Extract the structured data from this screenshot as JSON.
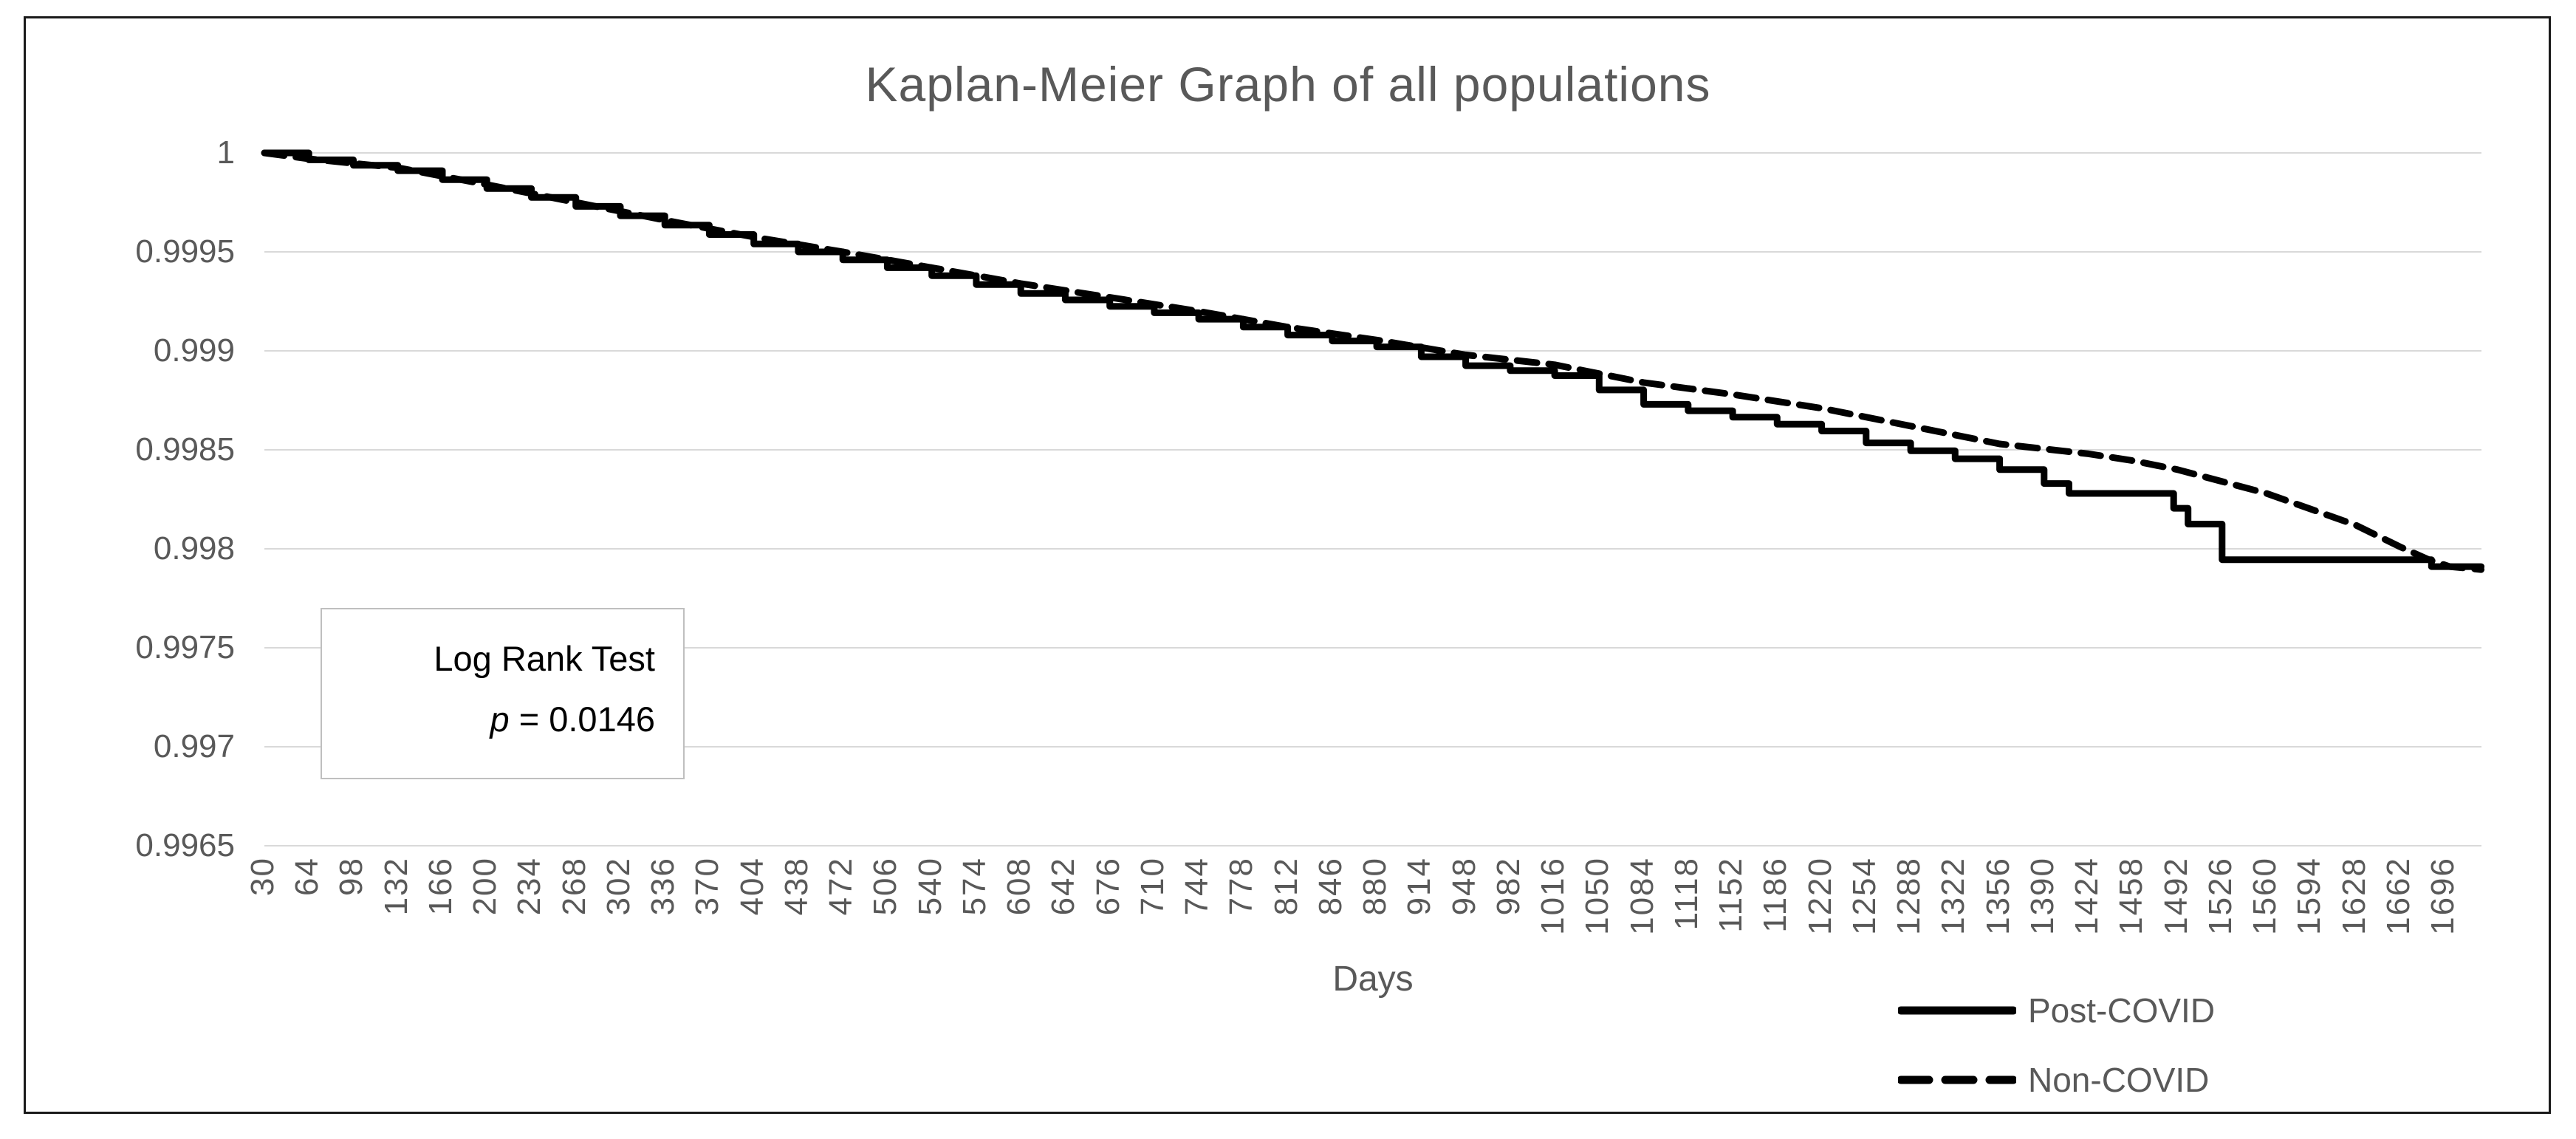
{
  "title": "Kaplan-Meier Graph of all populations",
  "x_axis": {
    "label": "Days",
    "ticks": [
      "30",
      "64",
      "98",
      "132",
      "166",
      "200",
      "234",
      "268",
      "302",
      "336",
      "370",
      "404",
      "438",
      "472",
      "506",
      "540",
      "574",
      "608",
      "642",
      "676",
      "710",
      "744",
      "778",
      "812",
      "846",
      "880",
      "914",
      "948",
      "982",
      "1016",
      "1050",
      "1084",
      "1118",
      "1152",
      "1186",
      "1220",
      "1254",
      "1288",
      "1322",
      "1356",
      "1390",
      "1424",
      "1458",
      "1492",
      "1526",
      "1560",
      "1594",
      "1628",
      "1662",
      "1696"
    ]
  },
  "y_axis": {
    "ticks": [
      "1",
      "0.9995",
      "0.999",
      "0.9985",
      "0.998",
      "0.9975",
      "0.997",
      "0.9965"
    ]
  },
  "annotation": {
    "line1": "Log Rank Test",
    "p_symbol": "p",
    "p_rest": " = 0.0146"
  },
  "legend": [
    {
      "label": "Post-COVID",
      "style": "solid"
    },
    {
      "label": "Non-COVID",
      "style": "dashed"
    }
  ],
  "colors": {
    "curve": "#000000",
    "grid": "#d9d9d9",
    "text": "#595959",
    "frame_border": "#1a1a1a",
    "annotation_border": "#bfbfbf",
    "background": "#ffffff"
  },
  "chart_data": {
    "type": "line",
    "title": "Kaplan-Meier Graph of all populations",
    "xlabel": "Days",
    "ylabel": "",
    "ylim": [
      0.9965,
      1.0
    ],
    "y_ticks": [
      1,
      0.9995,
      0.999,
      0.9985,
      0.998,
      0.9975,
      0.997,
      0.9965
    ],
    "x_ticks": [
      30,
      64,
      98,
      132,
      166,
      200,
      234,
      268,
      302,
      336,
      370,
      404,
      438,
      472,
      506,
      540,
      574,
      608,
      642,
      676,
      710,
      744,
      778,
      812,
      846,
      880,
      914,
      948,
      982,
      1016,
      1050,
      1084,
      1118,
      1152,
      1186,
      1220,
      1254,
      1288,
      1322,
      1356,
      1390,
      1424,
      1458,
      1492,
      1526,
      1560,
      1594,
      1628,
      1662,
      1696
    ],
    "x_range_days": [
      30,
      1724
    ],
    "grid": "horizontal-only",
    "legend_position": "bottom-right",
    "annotation": "Log Rank Test p = 0.0146",
    "series": [
      {
        "name": "Non-COVID",
        "dash": "dashed",
        "step": false,
        "points": [
          [
            30,
            1.0
          ],
          [
            64,
            0.99997
          ],
          [
            132,
            0.999925
          ],
          [
            200,
            0.99984
          ],
          [
            268,
            0.99975
          ],
          [
            336,
            0.99966
          ],
          [
            404,
            0.999575
          ],
          [
            472,
            0.9995
          ],
          [
            540,
            0.99942
          ],
          [
            608,
            0.99934
          ],
          [
            676,
            0.99927
          ],
          [
            744,
            0.9992
          ],
          [
            812,
            0.99912
          ],
          [
            880,
            0.999055
          ],
          [
            948,
            0.99898
          ],
          [
            1016,
            0.99893
          ],
          [
            1084,
            0.99884
          ],
          [
            1152,
            0.99878
          ],
          [
            1220,
            0.99871
          ],
          [
            1288,
            0.99862
          ],
          [
            1356,
            0.99853
          ],
          [
            1424,
            0.99848
          ],
          [
            1458,
            0.998445
          ],
          [
            1492,
            0.9984
          ],
          [
            1526,
            0.99834
          ],
          [
            1560,
            0.99828
          ],
          [
            1594,
            0.9982
          ],
          [
            1628,
            0.99812
          ],
          [
            1662,
            0.99801
          ],
          [
            1684,
            0.997945
          ],
          [
            1700,
            0.99791
          ],
          [
            1724,
            0.997895
          ]
        ]
      },
      {
        "name": "Post-COVID",
        "dash": "solid",
        "step": true,
        "points": [
          [
            30,
            1.0
          ],
          [
            64,
            0.999965
          ],
          [
            132,
            0.99991
          ],
          [
            200,
            0.99982
          ],
          [
            268,
            0.99973
          ],
          [
            336,
            0.999635
          ],
          [
            404,
            0.99954
          ],
          [
            472,
            0.99946
          ],
          [
            540,
            0.99938
          ],
          [
            608,
            0.99929
          ],
          [
            676,
            0.999225
          ],
          [
            744,
            0.99916
          ],
          [
            812,
            0.99908
          ],
          [
            880,
            0.99902
          ],
          [
            914,
            0.99897
          ],
          [
            948,
            0.998925
          ],
          [
            1016,
            0.998875
          ],
          [
            1084,
            0.99873
          ],
          [
            1152,
            0.998665
          ],
          [
            1220,
            0.998595
          ],
          [
            1254,
            0.998535
          ],
          [
            1322,
            0.998455
          ],
          [
            1356,
            0.9984
          ],
          [
            1390,
            0.99833
          ],
          [
            1409,
            0.99828
          ],
          [
            1483,
            0.99828
          ],
          [
            1489,
            0.998205
          ],
          [
            1494,
            0.998205
          ],
          [
            1500,
            0.998125
          ],
          [
            1526,
            0.998125
          ],
          [
            1526,
            0.997945
          ],
          [
            1680,
            0.997945
          ],
          [
            1686,
            0.99791
          ],
          [
            1724,
            0.99791
          ]
        ]
      }
    ]
  }
}
